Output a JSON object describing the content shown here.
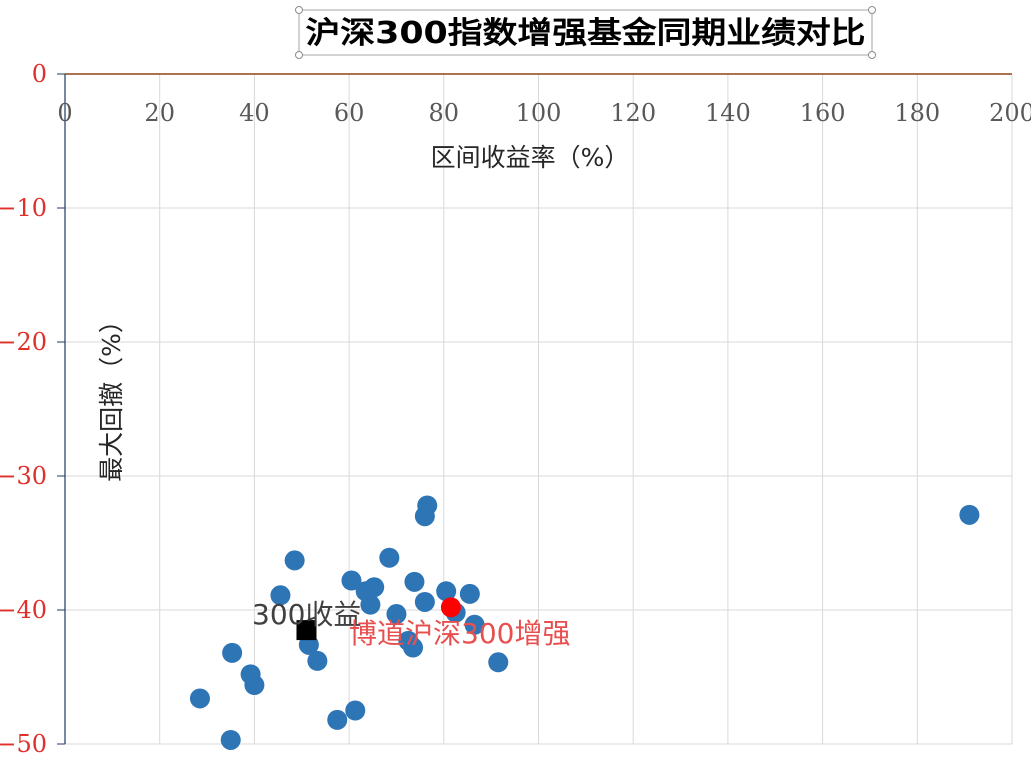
{
  "chart_data": {
    "type": "scatter",
    "title": "沪深300指数增强基金同期业绩对比",
    "xlabel": "区间收益率（%）",
    "ylabel": "最大回撤（%）",
    "xlim": [
      0,
      200
    ],
    "ylim": [
      -50,
      0
    ],
    "x_ticks": [
      "0",
      "20",
      "40",
      "60",
      "80",
      "100",
      "120",
      "140",
      "160",
      "180",
      "200"
    ],
    "y_ticks": [
      "0",
      "−10",
      "−20",
      "−30",
      "−40",
      "−50"
    ],
    "grid": true,
    "colors": {
      "funds": "#2e75b6",
      "benchmark": "#000000",
      "highlight": "#ff0000",
      "x_ticks": "#595959",
      "y_ticks": "#e0302b",
      "ann_benchmark": "#404040",
      "ann_highlight": "#e85050",
      "top_line": "#8b4513",
      "y_axis": "#1f3864"
    },
    "series": [
      {
        "values": [
          {
            "x": 28.5,
            "y": -46.6
          },
          {
            "x": 35.0,
            "y": -49.7
          },
          {
            "x": 35.3,
            "y": -43.2
          },
          {
            "x": 39.2,
            "y": -44.8
          },
          {
            "x": 40.0,
            "y": -45.6
          },
          {
            "x": 45.5,
            "y": -38.9
          },
          {
            "x": 48.5,
            "y": -36.3
          },
          {
            "x": 51.5,
            "y": -42.6
          },
          {
            "x": 53.3,
            "y": -43.8
          },
          {
            "x": 57.5,
            "y": -48.2
          },
          {
            "x": 60.5,
            "y": -37.8
          },
          {
            "x": 61.3,
            "y": -47.5
          },
          {
            "x": 63.5,
            "y": -38.6
          },
          {
            "x": 64.5,
            "y": -39.6
          },
          {
            "x": 65.3,
            "y": -38.3
          },
          {
            "x": 68.5,
            "y": -36.1
          },
          {
            "x": 70.0,
            "y": -40.3
          },
          {
            "x": 72.5,
            "y": -42.3
          },
          {
            "x": 73.5,
            "y": -42.8
          },
          {
            "x": 73.8,
            "y": -37.9
          },
          {
            "x": 76.0,
            "y": -39.4
          },
          {
            "x": 76.0,
            "y": -33.0
          },
          {
            "x": 76.5,
            "y": -32.2
          },
          {
            "x": 80.5,
            "y": -38.6
          },
          {
            "x": 82.5,
            "y": -40.2
          },
          {
            "x": 85.5,
            "y": -38.8
          },
          {
            "x": 86.5,
            "y": -41.1
          },
          {
            "x": 91.5,
            "y": -43.9
          },
          {
            "x": 191.0,
            "y": -32.9
          }
        ]
      },
      {
        "name": "300收益",
        "values": [
          {
            "x": 51.0,
            "y": -41.5
          }
        ]
      },
      {
        "name": "博道沪深300增强",
        "values": [
          {
            "x": 81.5,
            "y": -39.8
          }
        ]
      }
    ],
    "annotations": [
      "300收益",
      "博道沪深300增强"
    ]
  }
}
